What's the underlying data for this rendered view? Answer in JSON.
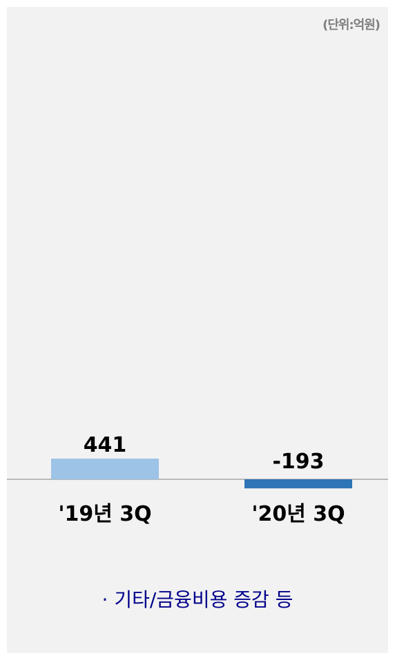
{
  "unit_label": "(단위:억원)",
  "note": "· 기타/금융비용 증감 등",
  "colors": {
    "background": "#f2f2f2",
    "bar_2019": "#9dc3e6",
    "bar_2020": "#2e75b6",
    "baseline": "#a6a6a6",
    "text": "#000000",
    "note": "#00008b"
  },
  "chart_data": {
    "type": "bar",
    "categories": [
      "'19년 3Q",
      "'20년 3Q"
    ],
    "values": [
      441,
      -193
    ],
    "data_labels": [
      "441",
      "-193"
    ],
    "title": "",
    "xlabel": "",
    "ylabel": "",
    "grid": false,
    "legend": "none"
  }
}
